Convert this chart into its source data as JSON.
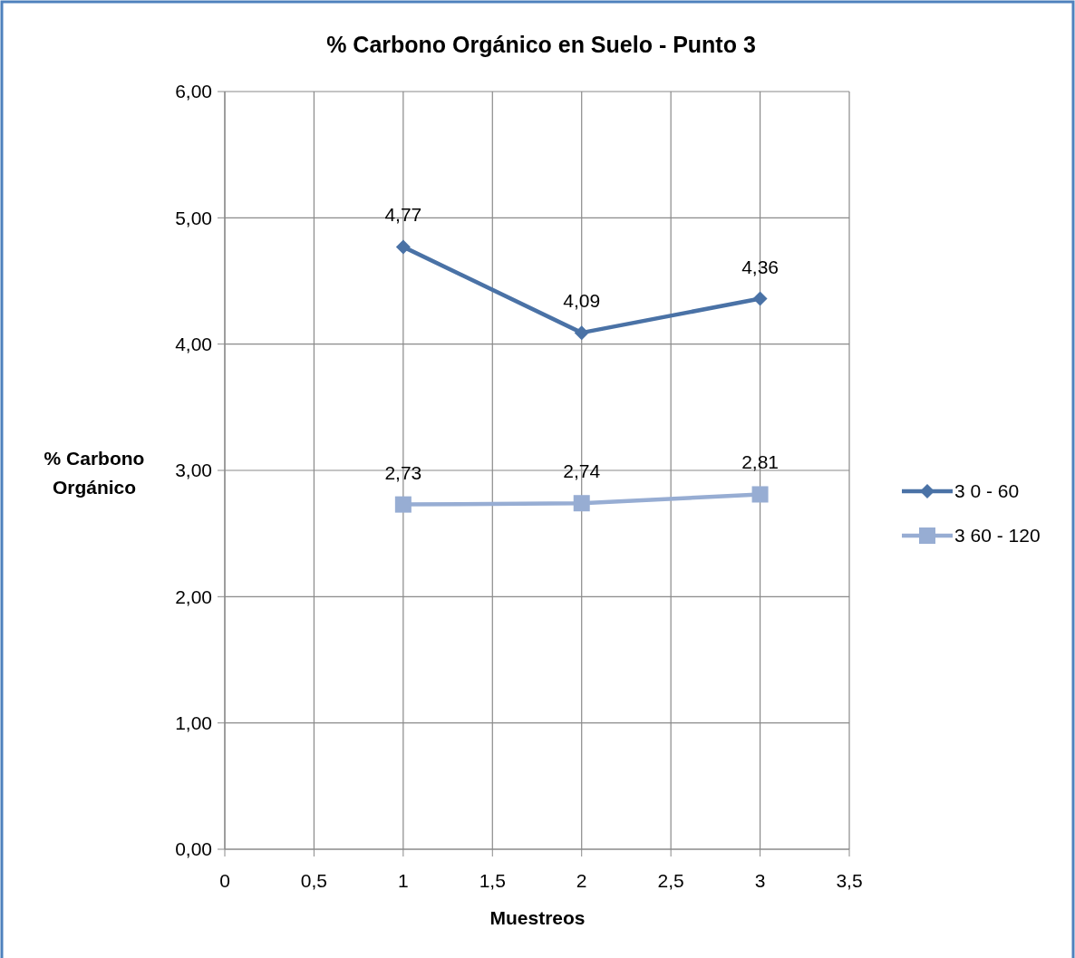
{
  "chart_data": {
    "type": "line",
    "title": "% Carbono Orgánico en Suelo - Punto 3",
    "xlabel": "Muestreos",
    "ylabel": "% Carbono Orgánico",
    "series": [
      {
        "name": "3 0 - 60",
        "color": "#4a72a6",
        "marker": "diamond",
        "x": [
          1,
          2,
          3
        ],
        "values": [
          4.77,
          4.09,
          4.36
        ],
        "value_labels": [
          "4,77",
          "4,09",
          "4,36"
        ]
      },
      {
        "name": "3 60 - 120",
        "color": "#97add3",
        "marker": "square",
        "x": [
          1,
          2,
          3
        ],
        "values": [
          2.73,
          2.74,
          2.81
        ],
        "value_labels": [
          "2,73",
          "2,74",
          "2,81"
        ]
      }
    ],
    "xlim": [
      0,
      3.5
    ],
    "xticks": [
      0,
      {
        "value": 0.5,
        "label": "0,5"
      },
      1,
      {
        "value": 1.5,
        "label": "1,5"
      },
      2,
      {
        "value": 2.5,
        "label": "2,5"
      },
      3,
      {
        "value": 3.5,
        "label": "3,5"
      }
    ],
    "ylim": [
      0,
      6
    ],
    "yticks": [
      {
        "value": 0,
        "label": "0,00"
      },
      {
        "value": 1,
        "label": "1,00"
      },
      {
        "value": 2,
        "label": "2,00"
      },
      {
        "value": 3,
        "label": "3,00"
      },
      {
        "value": 4,
        "label": "4,00"
      },
      {
        "value": 5,
        "label": "5,00"
      },
      {
        "value": 6,
        "label": "6,00"
      }
    ],
    "grid": true,
    "legend": "right"
  }
}
